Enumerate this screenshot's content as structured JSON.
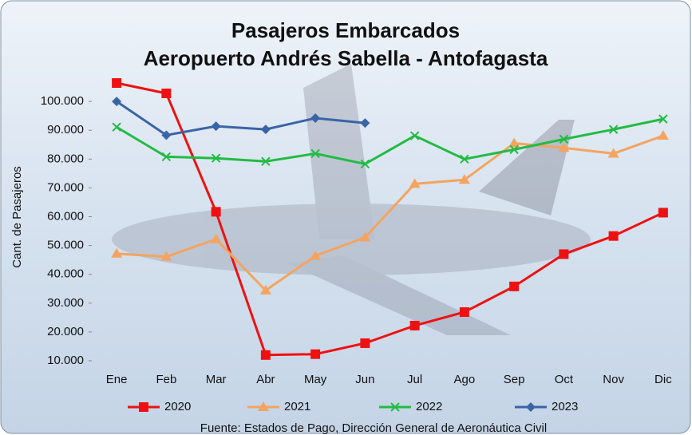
{
  "chart_data": {
    "type": "line",
    "title": "Pasajeros  Embarcados",
    "subtitle": "Aeropuerto Andrés Sabella - Antofagasta",
    "y_label": "Cant. de Pasajeros",
    "source": "Fuente: Estados de Pago, Dirección General de Aeronáutica Civil",
    "categories": [
      "Ene",
      "Feb",
      "Mar",
      "Abr",
      "May",
      "Jun",
      "Jul",
      "Ago",
      "Sep",
      "Oct",
      "Nov",
      "Dic"
    ],
    "series": [
      {
        "name": "2020",
        "color": "#ee1111",
        "marker": "square",
        "values": [
          106400,
          102800,
          61700,
          12000,
          12300,
          16100,
          22200,
          26900,
          35800,
          47000,
          53300,
          61400
        ]
      },
      {
        "name": "2021",
        "color": "#f4a460",
        "marker": "triangle",
        "values": [
          47200,
          46100,
          52200,
          34400,
          46400,
          52800,
          71400,
          72800,
          85500,
          83900,
          81900,
          88100
        ]
      },
      {
        "name": "2022",
        "color": "#22bb44",
        "marker": "x",
        "values": [
          91100,
          80800,
          80300,
          79200,
          81900,
          78300,
          88100,
          80000,
          83300,
          86900,
          90300,
          93900
        ]
      },
      {
        "name": "2023",
        "color": "#3a64a8",
        "marker": "diamond",
        "values": [
          100000,
          88300,
          91400,
          90300,
          94200,
          92500,
          null,
          null,
          null,
          null,
          null,
          null
        ]
      }
    ],
    "ylim": [
      10000,
      110000
    ],
    "yticks": [
      {
        "value": 10000,
        "label": "10.000"
      },
      {
        "value": 20000,
        "label": "20.000"
      },
      {
        "value": 30000,
        "label": "30.000"
      },
      {
        "value": 40000,
        "label": "40.000"
      },
      {
        "value": 50000,
        "label": "50.000"
      },
      {
        "value": 60000,
        "label": "60.000"
      },
      {
        "value": 70000,
        "label": "70.000"
      },
      {
        "value": 80000,
        "label": "80.000"
      },
      {
        "value": 90000,
        "label": "90.000"
      },
      {
        "value": 100000,
        "label": "100.000"
      }
    ],
    "grid": false
  }
}
